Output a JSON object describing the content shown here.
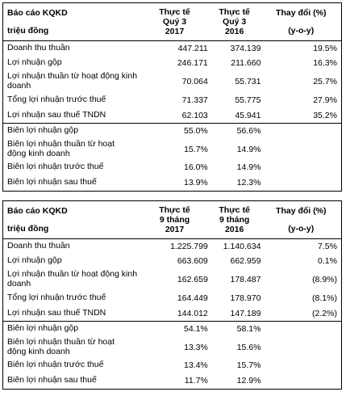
{
  "table1": {
    "header": {
      "col0": [
        "Báo cáo KQKD",
        "triệu đồng"
      ],
      "col1": [
        "Thực tế",
        "Quý 3",
        "2017"
      ],
      "col2": [
        "Thực tế",
        "Quý 3",
        "2016"
      ],
      "col3": [
        "Thay đổi (%)",
        "(y-o-y)"
      ]
    },
    "rows": [
      {
        "label": "Doanh thu thuần",
        "v1": "447.211",
        "v2": "374.139",
        "v3": "19.5%"
      },
      {
        "label": "Lợi nhuận gộp",
        "v1": "246.171",
        "v2": "211.660",
        "v3": "16.3%"
      },
      {
        "label": "Lợi nhuận thuần từ hoạt động kinh doanh",
        "v1": "70.064",
        "v2": "55.731",
        "v3": "25.7%"
      },
      {
        "label": "Tổng lợi nhuận trước thuế",
        "v1": "71.337",
        "v2": "55.775",
        "v3": "27.9%"
      },
      {
        "label": "Lợi nhuận sau thuế TNDN",
        "v1": "62.103",
        "v2": "45.941",
        "v3": "35.2%"
      }
    ],
    "margins": [
      {
        "label": "Biên lợi nhuận gộp",
        "v1": "55.0%",
        "v2": "56.6%"
      },
      {
        "label": "Biên lợi nhuận thuần từ hoạt động kinh doanh",
        "v1": "15.7%",
        "v2": "14.9%"
      },
      {
        "label": "Biên lợi nhuận trước thuế",
        "v1": "16.0%",
        "v2": "14.9%"
      },
      {
        "label": "Biên lợi nhuận sau thuế",
        "v1": "13.9%",
        "v2": "12.3%"
      }
    ]
  },
  "table2": {
    "header": {
      "col0": [
        "Báo cáo KQKD",
        "triệu đồng"
      ],
      "col1": [
        "Thực tế",
        "9 tháng",
        "2017"
      ],
      "col2": [
        "Thực tế",
        "9 tháng",
        "2016"
      ],
      "col3": [
        "Thay đổi (%)",
        "(y-o-y)"
      ]
    },
    "rows": [
      {
        "label": "Doanh thu thuần",
        "v1": "1.225.799",
        "v2": "1.140.634",
        "v3": "7.5%"
      },
      {
        "label": "Lợi nhuận gộp",
        "v1": "663.609",
        "v2": "662.959",
        "v3": "0.1%"
      },
      {
        "label": "Lợi nhuận thuần từ hoạt động kinh doanh",
        "v1": "162.659",
        "v2": "178.487",
        "v3": "(8.9%)"
      },
      {
        "label": "Tổng lợi nhuận trước thuế",
        "v1": "164.449",
        "v2": "178.970",
        "v3": "(8.1%)"
      },
      {
        "label": "Lợi nhuận sau thuế TNDN",
        "v1": "144.012",
        "v2": "147.189",
        "v3": "(2.2%)"
      }
    ],
    "margins": [
      {
        "label": "Biên lợi nhuận gộp",
        "v1": "54.1%",
        "v2": "58.1%"
      },
      {
        "label": "Biên lợi nhuận thuần từ hoạt động kinh doanh",
        "v1": "13.3%",
        "v2": "15.6%"
      },
      {
        "label": "Biên lợi nhuận trước thuế",
        "v1": "13.4%",
        "v2": "15.7%"
      },
      {
        "label": "Biên lợi nhuận sau thuế",
        "v1": "11.7%",
        "v2": "12.9%"
      }
    ]
  }
}
